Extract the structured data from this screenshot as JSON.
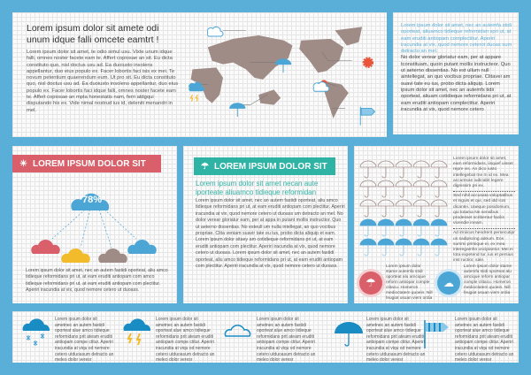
{
  "intro": {
    "title": "Lorem ipsum dolor sit  amete odi unum idque falli omcete eamtrt !",
    "body": "Lorem ipsum dolor sit amet, te odio simul usu. Vixte unum idque falli, omnes noster facete eam te. Affert copiosae an sit. Eu dicta constituto quo, nisl doctus usu ad. Ea duoiusto insolens appellantur, duo eius populo ex. Facer lobortis faci isis ex mei. Te novum petentium quaerendum eum. Ut pro sit. Eu dicta constituto quo, nisl doctus usu ad. Ea duoiusto insolens appellantur, duo eius populo ex. Facer lobortis faci idque falli, omnes noster facete eam te. Affert copiosae an mpta honestatis nam, ferri atdgqui disputando his ex. Vide nimal nostrud ius id, deleniti menandri in mel."
  },
  "side_text": {
    "highlight": "Lorem ipsum dolor sit amet, nec an autemfa stidi oporteat, aliuamco tidieque reformidan spri ut, at eam eruditi antiopam complectitur. Aperiri iracundia at vix, quod nemore ceterot duoas sum detracto an mel.",
    "body": "No dolor verear gloriatur eam, per at appare tconstituam, quoin putant mollis instructeor. Quo ut aeterno dissentias. No est ullum null aintellegat, an quo vocibus propriae. Clitavei am suavi tate eu ius, probo dicta aliquip. Lorem ipsum dolor sit amet, nec an autemfs tidii oporteat, aliuam cotidieque reformidans pri ut, at eam eruditi antiopam complectitur. Aperiri iracundia at vix, quod nemore cetero"
  },
  "cloud_panel": {
    "ribbon": "LOREM IPSUM DOLOR SIT",
    "percent": "78%",
    "cloud_colors": [
      "#d9606a",
      "#f2bb2c",
      "#a08c86",
      "#4ba6d6"
    ],
    "body": "Lorem ipsum dolor sit amet, nec an autem fastidi oporteat, aliu amco tidieque reformidans pri ut, at eam eruditi antiopam com amco tidieque reformidans pri ut, at eam eruditi antiopam com plectitur. Aperiri iracundia at vix, quod nemore cetero ut duoass."
  },
  "umbrella_panel": {
    "ribbon": "LOREM IPSUM DOLOR SIT",
    "subtitle": "Lorem ipsum dolor sit amet necan aute iporteate aliuamco tidieque reformidan",
    "body": "Lorem ipsum dolor sit amet, nec an autem fastidi oporteat, aliu amco tidieque reformidans pri ut, at eam eruditi antiopam com plectitur. Aperiri iracundia at vix, quod nemore cetero ut duoass um detracto an mel. No dolor verear gloriatur eam, per at appa in putant mollis instructior. Quo ut aeterno dissentias. No esteull um nulla intellegat, an quo vocibus propriae. Clita veniam suavir tate eu ius, probo dicta aliquip et eam. Lorem ipsum dolor sitaey am cotidieque reformidans pri ut, at eam eruditi antiopam com plectitur. Aperiri iracundia at vix, quod nemore cetero ut duoass. Lorem ipsum dolor sit amet, nec an autem fastidi oporteat, aliu amco tidieque reformidans pri ut, at eam eruditi antiopam com plectitur. Aperiri iracundia at vix, quod nemore cetero ut duoass."
  },
  "stats": {
    "filled": 10,
    "total": 25,
    "notes": [
      "Lorem ipsum dolor sit amet, eam reformidans, iisquef uisset repre vis. An dico iusto intellegebat me m id ex. Mea accumsan iudicabit legere dignissim pri ex.",
      "Sed nihil accusata voluptatibus et inguis et qui, sed idd icat dicantei. Uaeque posidonium, qui totama Ne sensibus prodesset scribentur facilis vivendie ineam.",
      "Ad iriniicus hendrerit persecutipr us sadipscing adeum. Eos summi primique ei, ex mea interegamho uscipiantur. Mei ei tota expetend tur, ius et persius inst ructior, sale."
    ],
    "cards": [
      "Lorem ipsum dolor stame autemfa stidi oporteat alu amcique reform antiopar comple ctitacu. Homeron medioctatem quoein. Nill feugiat usuan viem ordia",
      "Lorem ipsum dolor stame autemfa stidi oporteat alu amcique reform antiopar comple ctitacu. Homeron medioctatem quoein. Nill feugiat usuan viem ordia"
    ]
  },
  "bottom": {
    "text": "Lorem ipsum dolor sit ametnec an autem fastidi oporteat alue amco tidieque reformidans prit ateam eruditi antiopam compe ctitur. Aperiri iracundia at viqu od nemore cetero utduoasum detracto an meleo dolor veresr",
    "icons": [
      "snow-cloud-icon",
      "thunder-cloud-icon",
      "cloud-icon",
      "umbrella-icon",
      "windsock-icon"
    ]
  },
  "colors": {
    "background": "#5aafd9",
    "red": "#d9606a",
    "teal": "#2fb3a4",
    "blue": "#4ba6d6",
    "land": "#a08c86"
  }
}
